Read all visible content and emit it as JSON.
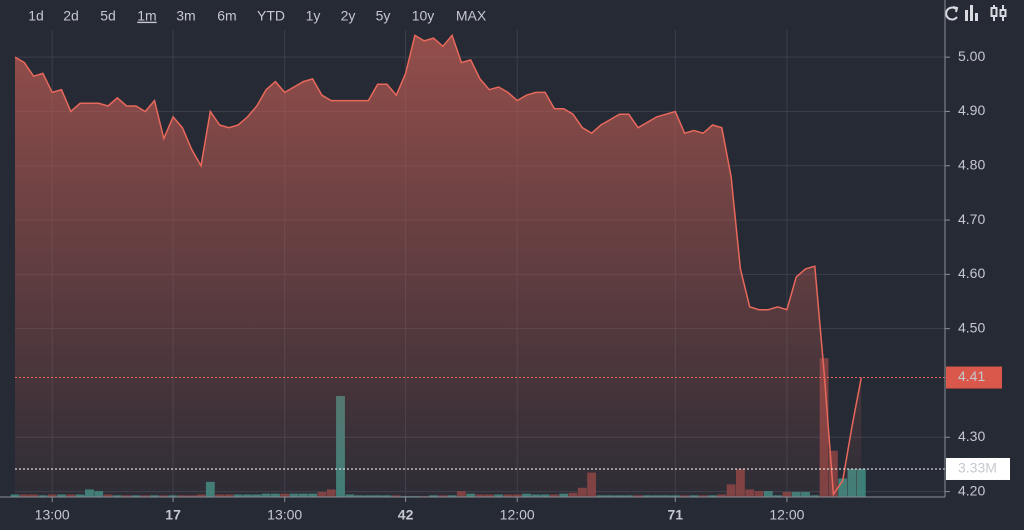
{
  "toolbar": {
    "ranges": [
      "1d",
      "2d",
      "5d",
      "1m",
      "3m",
      "6m",
      "YTD",
      "1y",
      "2y",
      "5y",
      "10y",
      "MAX"
    ],
    "selected_index": 3
  },
  "chart_data": {
    "type": "area",
    "color": "#e8685c",
    "values": [
      5.0,
      4.99,
      4.965,
      4.97,
      4.935,
      4.94,
      4.9,
      4.915,
      4.915,
      4.915,
      4.91,
      4.925,
      4.91,
      4.91,
      4.9,
      4.92,
      4.85,
      4.89,
      4.87,
      4.83,
      4.8,
      4.9,
      4.875,
      4.87,
      4.875,
      4.89,
      4.91,
      4.94,
      4.955,
      4.935,
      4.945,
      4.955,
      4.96,
      4.93,
      4.92,
      4.92,
      4.92,
      4.92,
      4.92,
      4.95,
      4.95,
      4.93,
      4.97,
      5.04,
      5.03,
      5.035,
      5.02,
      5.04,
      4.99,
      4.995,
      4.96,
      4.94,
      4.945,
      4.935,
      4.92,
      4.93,
      4.935,
      4.935,
      4.905,
      4.905,
      4.895,
      4.87,
      4.86,
      4.875,
      4.885,
      4.895,
      4.895,
      4.87,
      4.88,
      4.89,
      4.895,
      4.9,
      4.86,
      4.865,
      4.86,
      4.875,
      4.87,
      4.78,
      4.61,
      4.54,
      4.535,
      4.535,
      4.54,
      4.535,
      4.595,
      4.61,
      4.615,
      4.42,
      4.195,
      4.22,
      4.32,
      4.41
    ],
    "volume": {
      "up_color": "#3f8f86",
      "down_color": "#8c4444",
      "values": [
        300000,
        300000,
        300000,
        200000,
        300000,
        300000,
        300000,
        300000,
        900000,
        700000,
        300000,
        200000,
        200000,
        200000,
        200000,
        200000,
        200000,
        200000,
        200000,
        200000,
        300000,
        1800000,
        300000,
        300000,
        300000,
        300000,
        300000,
        400000,
        400000,
        400000,
        400000,
        400000,
        400000,
        600000,
        900000,
        12000000,
        300000,
        200000,
        200000,
        200000,
        200000,
        200000,
        100000,
        100000,
        100000,
        200000,
        200000,
        200000,
        700000,
        400000,
        300000,
        300000,
        300000,
        300000,
        300000,
        400000,
        300000,
        300000,
        300000,
        400000,
        500000,
        1100000,
        2900000,
        200000,
        200000,
        200000,
        200000,
        200000,
        200000,
        200000,
        200000,
        200000,
        200000,
        200000,
        200000,
        200000,
        300000,
        1500000,
        3300000,
        900000,
        700000,
        700000,
        200000,
        600000,
        600000,
        600000,
        200000,
        16500000,
        5500000,
        2200000,
        3330000,
        3330000
      ]
    },
    "vlim": [
      0,
      55500000
    ],
    "xlim": [
      0,
      100
    ],
    "xticks": [
      {
        "value": 4,
        "label": "13:00"
      },
      17,
      {
        "value": 29,
        "label": "13:00"
      },
      42,
      {
        "value": 54,
        "label": "12:00"
      },
      71,
      {
        "value": 83,
        "label": "12:00"
      }
    ],
    "ylim": [
      4.19,
      5.05
    ],
    "yticks": [
      {
        "value": 4.2,
        "label": "4.20"
      },
      {
        "value": 4.3,
        "label": "4.30"
      },
      {
        "value": 4.5,
        "label": "4.50"
      },
      {
        "value": 4.6,
        "label": "4.60"
      },
      {
        "value": 4.7,
        "label": "4.70"
      },
      {
        "value": 4.8,
        "label": "4.80"
      },
      {
        "value": 4.9,
        "label": "4.90"
      },
      {
        "value": 5,
        "label": "5.00"
      }
    ],
    "last_price": 4.41,
    "last_volume": {
      "value": 3330000,
      "label": "3.33M"
    },
    "grid": true
  }
}
